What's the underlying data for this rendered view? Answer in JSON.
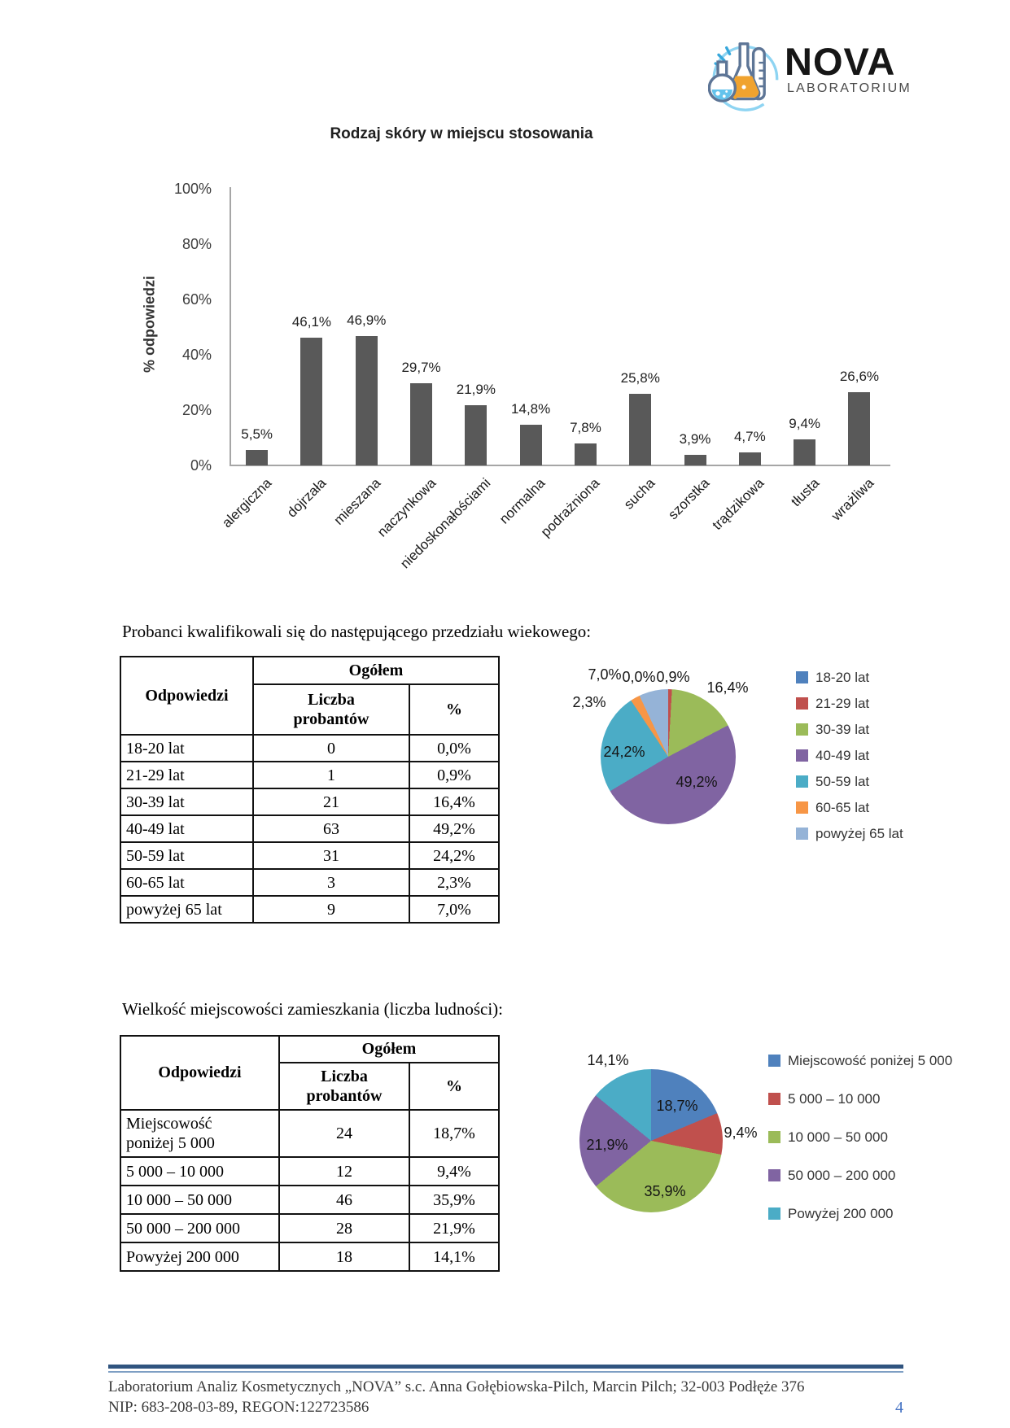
{
  "logo": {
    "title": "NOVA",
    "subtitle": "LABORATORIUM"
  },
  "chart_data": [
    {
      "id": "skin-type-bar",
      "type": "bar",
      "title": "Rodzaj skóry w miejscu stosowania",
      "ylabel": "% odpowiedzi",
      "xlabel": "",
      "ylim": [
        0,
        100
      ],
      "yticks_pct": [
        100,
        80,
        60,
        40,
        20,
        0
      ],
      "grid": false,
      "legend": false,
      "bar_color": "#595959",
      "categories": [
        "alergiczna",
        "dojrzała",
        "mieszana",
        "naczynkowa",
        "niedoskonałościami",
        "normalna",
        "podrażniona",
        "sucha",
        "szorstka",
        "trądzikowa",
        "tłusta",
        "wrażliwa"
      ],
      "values": [
        5.5,
        46.1,
        46.9,
        29.7,
        21.9,
        14.8,
        7.8,
        25.8,
        3.9,
        4.7,
        9.4,
        26.6
      ],
      "value_labels": [
        "5,5%",
        "46,1%",
        "46,9%",
        "29,7%",
        "21,9%",
        "14,8%",
        "7,8%",
        "25,8%",
        "3,9%",
        "4,7%",
        "9,4%",
        "26,6%"
      ]
    },
    {
      "id": "age-pie",
      "type": "pie",
      "legend_position": "right",
      "start_angle_deg": 0,
      "direction": "clockwise",
      "labels": [
        "18-20 lat",
        "21-29 lat",
        "30-39 lat",
        "40-49 lat",
        "50-59 lat",
        "60-65 lat",
        "powyżej 65 lat"
      ],
      "values": [
        0,
        0.9,
        16.4,
        49.2,
        24.2,
        2.3,
        7
      ],
      "pct_labels": [
        "0,0%",
        "0,9%",
        "16,4%",
        "49,2%",
        "24,2%",
        "2,3%",
        "7,0%"
      ],
      "colors": [
        "#4F81BD",
        "#C0504D",
        "#9BBB59",
        "#8064A2",
        "#4BACC6",
        "#F79646",
        "#95B3D7"
      ]
    },
    {
      "id": "residence-pie",
      "type": "pie",
      "legend_position": "right",
      "start_angle_deg": 0,
      "direction": "clockwise",
      "labels": [
        "Miejscowość poniżej 5 000",
        "5 000 – 10 000",
        "10 000 – 50 000",
        "50 000 – 200 000",
        "Powyżej 200 000"
      ],
      "values": [
        18.7,
        9.4,
        35.9,
        21.9,
        14.1
      ],
      "pct_labels": [
        "18,7%",
        "9,4%",
        "35,9%",
        "21,9%",
        "14,1%"
      ],
      "colors": [
        "#4F81BD",
        "#C0504D",
        "#9BBB59",
        "#8064A2",
        "#4BACC6"
      ]
    }
  ],
  "age_section": {
    "intro": "Probanci kwalifikowali się do następującego przedziału wiekowego:",
    "table": {
      "headers": {
        "answers": "Odpowiedzi",
        "group": "Ogółem",
        "count": "Liczba\nprobantów",
        "percent": "%"
      },
      "rows": [
        [
          "18-20 lat",
          "0",
          "0,0%"
        ],
        [
          "21-29 lat",
          "1",
          "0,9%"
        ],
        [
          "30-39 lat",
          "21",
          "16,4%"
        ],
        [
          "40-49 lat",
          "63",
          "49,2%"
        ],
        [
          "50-59 lat",
          "31",
          "24,2%"
        ],
        [
          "60-65 lat",
          "3",
          "2,3%"
        ],
        [
          "powyżej 65 lat",
          "9",
          "7,0%"
        ]
      ]
    }
  },
  "residence_section": {
    "intro": "Wielkość miejscowości zamieszkania (liczba ludności):",
    "table": {
      "headers": {
        "answers": "Odpowiedzi",
        "group": "Ogółem",
        "count": "Liczba\nprobantów",
        "percent": "%"
      },
      "rows": [
        [
          "Miejscowość\nponiżej 5 000",
          "24",
          "18,7%"
        ],
        [
          "5 000 – 10 000",
          "12",
          "9,4%"
        ],
        [
          "10 000 – 50 000",
          "46",
          "35,9%"
        ],
        [
          "50 000 – 200 000",
          "28",
          "21,9%"
        ],
        [
          "Powyżej 200 000",
          "18",
          "14,1%"
        ]
      ]
    }
  },
  "footer": {
    "line1": "Laboratorium Analiz Kosmetycznych „NOVA” s.c. Anna Gołębiowska-Pilch, Marcin Pilch; 32-003 Podłęże 376",
    "line2": "NIP: 683-208-03-89, REGON:122723586",
    "page_number": "4"
  },
  "colors": {
    "axis_gray": "#A6A6A6",
    "bar_gray": "#595959",
    "footer_rule_dark": "#30547F",
    "footer_rule_light": "#7E9FC4",
    "page_number_blue": "#4472C4"
  }
}
